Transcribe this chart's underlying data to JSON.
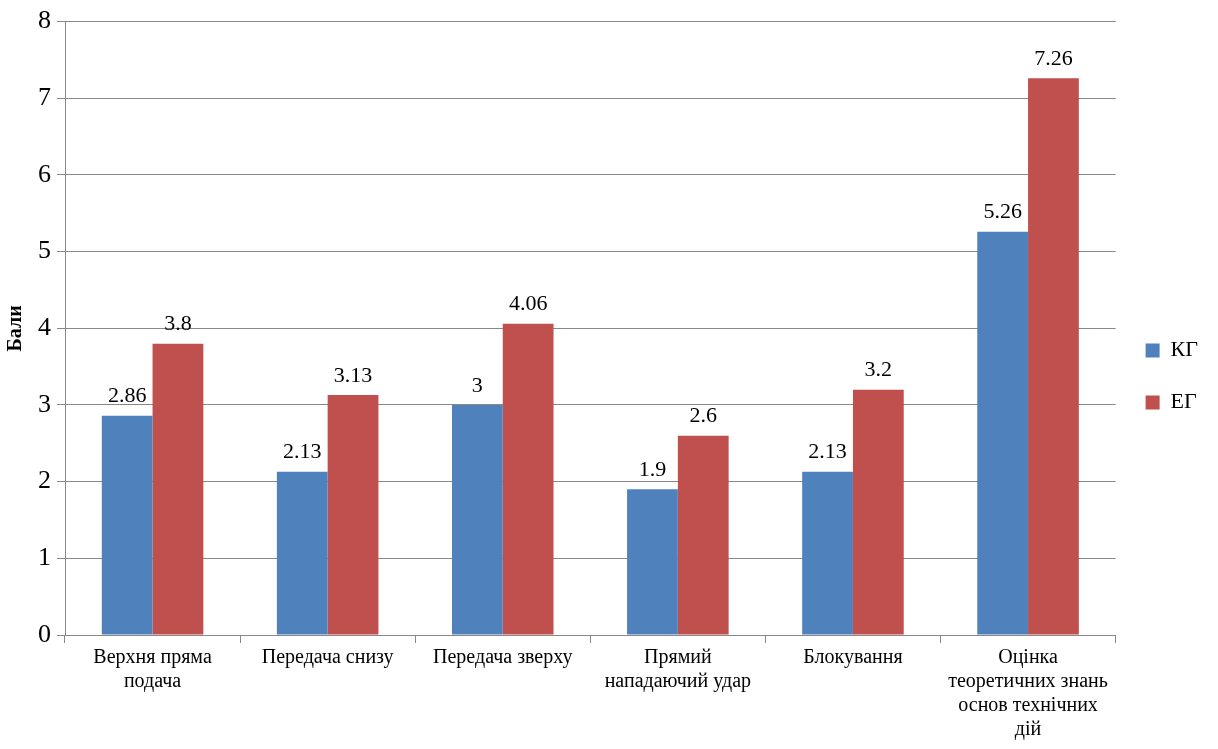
{
  "chart_data": {
    "type": "bar",
    "ylabel": "Бали",
    "categories": [
      "Верхня пряма подача",
      "Передача снизу",
      "Передача зверху",
      "Прямий нападаючий удар",
      "Блокування",
      "Оцінка теоретичних знань основ технічних дій"
    ],
    "series": [
      {
        "name": "КГ",
        "color": "#4f81bd",
        "values": [
          2.86,
          2.13,
          3,
          1.9,
          2.13,
          5.26
        ]
      },
      {
        "name": "ЕГ",
        "color": "#c0504d",
        "values": [
          3.8,
          3.13,
          4.06,
          2.6,
          3.2,
          7.26
        ]
      }
    ],
    "ylim": [
      0,
      8
    ],
    "yticks": [
      0,
      1,
      2,
      3,
      4,
      5,
      6,
      7,
      8
    ],
    "grid": "y",
    "legend": "right",
    "data_labels": true
  }
}
